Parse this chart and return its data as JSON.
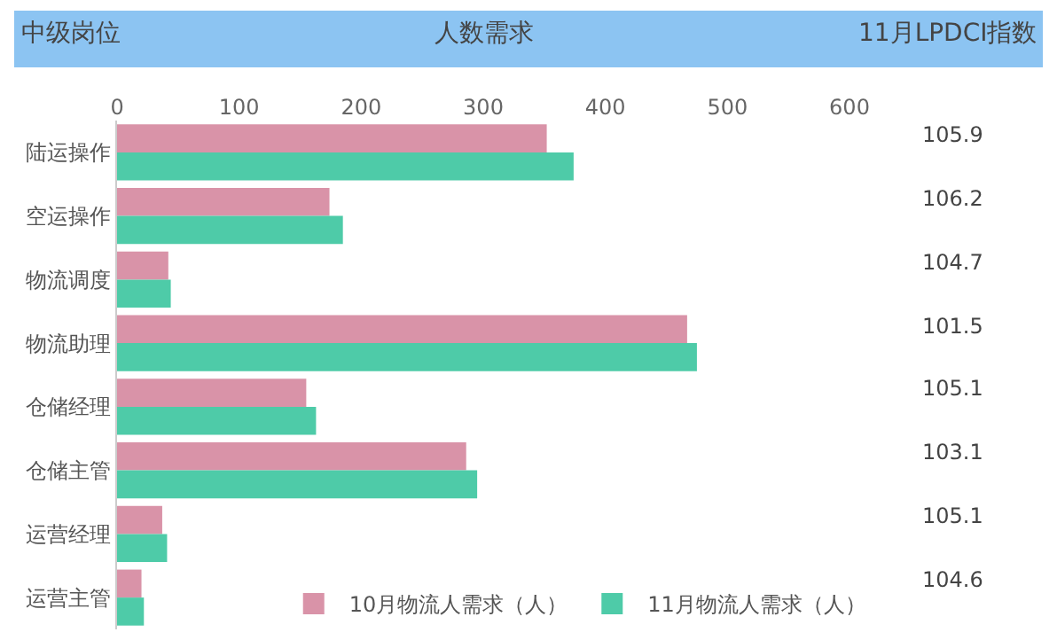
{
  "chart_data": {
    "type": "bar",
    "orientation": "horizontal",
    "title": "人数需求",
    "ylabel": "中级岗位",
    "categories": [
      "陆运操作",
      "空运操作",
      "物流调度",
      "物流助理",
      "仓储经理",
      "仓储主管",
      "运营经理",
      "运营主管"
    ],
    "series": [
      {
        "name": "10月物流人需求（人）",
        "color": "#d993a8",
        "values": [
          352,
          174,
          42,
          467,
          155,
          286,
          37,
          20
        ]
      },
      {
        "name": "11月物流人需求（人）",
        "color": "#4ecba8",
        "values": [
          374,
          185,
          44,
          475,
          163,
          295,
          41,
          22
        ]
      }
    ],
    "xlim": [
      0,
      600
    ],
    "xticks": [
      0,
      100,
      200,
      300,
      400,
      500,
      600
    ],
    "annotations": [
      "11月LPDCI指数",
      "105.9",
      "106.2",
      "104.7",
      "101.5",
      "105.1",
      "103.1",
      "105.1",
      "104.6"
    ],
    "grid": false,
    "legend": "bottom"
  }
}
